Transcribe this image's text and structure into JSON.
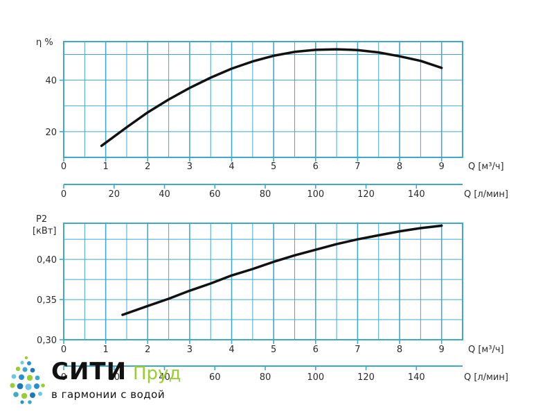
{
  "chart_data": [
    {
      "type": "line",
      "ylabel": "η %",
      "xlabel": "Q [м³/ч]",
      "xlabel2": "Q [л/мин]",
      "xlim": [
        0,
        9.5
      ],
      "ylim": [
        10,
        55
      ],
      "xticks": [
        "0",
        "1",
        "2",
        "3",
        "4",
        "5",
        "6",
        "7",
        "8",
        "9"
      ],
      "xticks2": [
        "0",
        "20",
        "40",
        "60",
        "80",
        "100",
        "120",
        "140"
      ],
      "yticks": [
        "20",
        "40"
      ],
      "grid": true,
      "series": [
        {
          "x": [
            0.9,
            1.5,
            2.0,
            2.5,
            3.0,
            3.5,
            4.0,
            4.5,
            5.0,
            5.5,
            6.0,
            6.5,
            7.0,
            7.5,
            8.0,
            8.5,
            9.0
          ],
          "y": [
            14.5,
            21.7,
            27.5,
            32.5,
            37.0,
            41.0,
            44.5,
            47.3,
            49.5,
            51.0,
            51.8,
            52.0,
            51.7,
            50.8,
            49.3,
            47.5,
            44.8
          ]
        }
      ]
    },
    {
      "type": "line",
      "ylabel": "P2",
      "ylabel2": "[кВт]",
      "xlabel": "Q [м³/ч]",
      "xlabel2": "Q [л/мин]",
      "xlim": [
        0,
        9.5
      ],
      "ylim": [
        0.3,
        0.445
      ],
      "xticks": [
        "0",
        "1",
        "2",
        "3",
        "4",
        "5",
        "6",
        "7",
        "8",
        "9"
      ],
      "xticks2": [
        "0",
        "20",
        "40",
        "60",
        "80",
        "100",
        "120",
        "140"
      ],
      "yticks": [
        "0,30",
        "0,35",
        "0,40"
      ],
      "grid": true,
      "series": [
        {
          "x": [
            1.4,
            2.0,
            2.5,
            3.0,
            3.5,
            4.0,
            4.5,
            5.0,
            5.5,
            6.0,
            6.5,
            7.0,
            7.5,
            8.0,
            8.5,
            9.0
          ],
          "y": [
            0.331,
            0.342,
            0.351,
            0.361,
            0.37,
            0.38,
            0.388,
            0.397,
            0.405,
            0.412,
            0.419,
            0.425,
            0.43,
            0.435,
            0.439,
            0.442
          ]
        }
      ]
    }
  ],
  "logo": {
    "brand_a": "СИТИ",
    "brand_b": "Пруд",
    "tagline": "в гармонии с водой",
    "accent_color": "#9acd32",
    "icon": "water-drops-icon"
  },
  "colors": {
    "grid": "#3fa9cc",
    "curve": "#111111"
  }
}
